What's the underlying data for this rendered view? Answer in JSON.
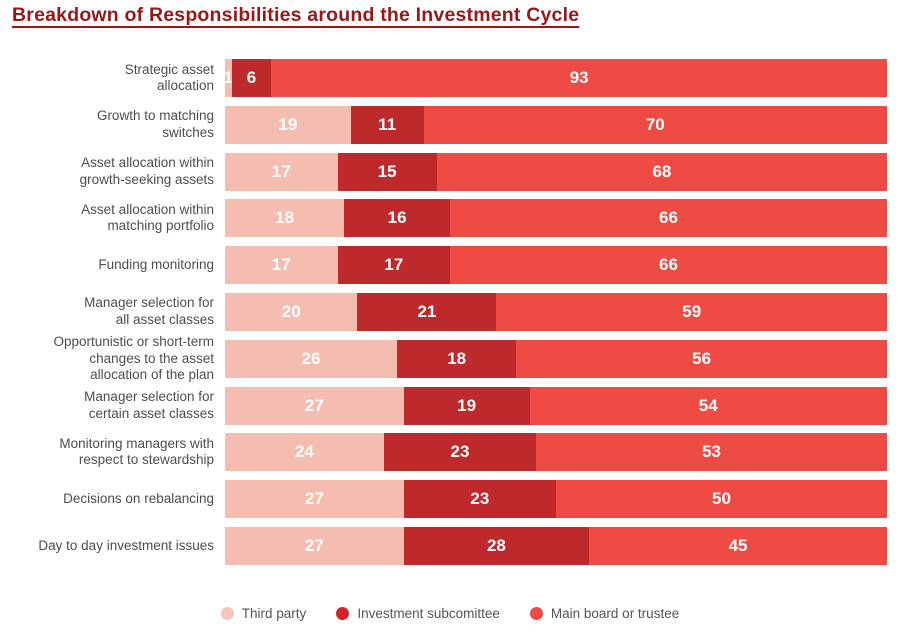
{
  "title": {
    "text": "Breakdown of Responsibilities around the Investment Cycle",
    "color": "#991717"
  },
  "chart_data": {
    "type": "bar",
    "orientation": "horizontal",
    "stacked": true,
    "xlim": [
      0,
      100
    ],
    "grid": false,
    "legend_position": "bottom",
    "value_labels": "inside-centered-white",
    "title": "Breakdown of Responsibilities around the Investment Cycle",
    "categories": [
      "Strategic asset\nallocation",
      "Growth to matching\nswitches",
      "Asset allocation within\ngrowth-seeking assets",
      "Asset allocation within\nmatching portfolio",
      "Funding monitoring",
      "Manager selection for\nall asset classes",
      "Opportunistic or short-term\nchanges to the asset\nallocation of the plan",
      "Manager selection for\ncertain asset classes",
      "Monitoring managers with\nrespect to stewardship",
      "Decisions on rebalancing",
      "Day to day investment issues"
    ],
    "series": [
      {
        "name": "Third party",
        "color": "#f5bcb0",
        "values": [
          1,
          19,
          17,
          18,
          17,
          20,
          26,
          27,
          24,
          27,
          27
        ]
      },
      {
        "name": "Investment subcomittee",
        "color": "#be292c",
        "values": [
          6,
          11,
          15,
          16,
          17,
          21,
          18,
          19,
          23,
          23,
          28
        ]
      },
      {
        "name": "Main board or trustee",
        "color": "#ef4b45",
        "values": [
          93,
          70,
          68,
          66,
          66,
          59,
          56,
          54,
          53,
          50,
          45
        ]
      }
    ]
  },
  "legend": {
    "items": [
      {
        "label": "Third party",
        "color": "#f7c3ba"
      },
      {
        "label": "Investment subcomittee",
        "color": "#d6202a"
      },
      {
        "label": "Main board or trustee",
        "color": "#ef4b45"
      }
    ]
  }
}
